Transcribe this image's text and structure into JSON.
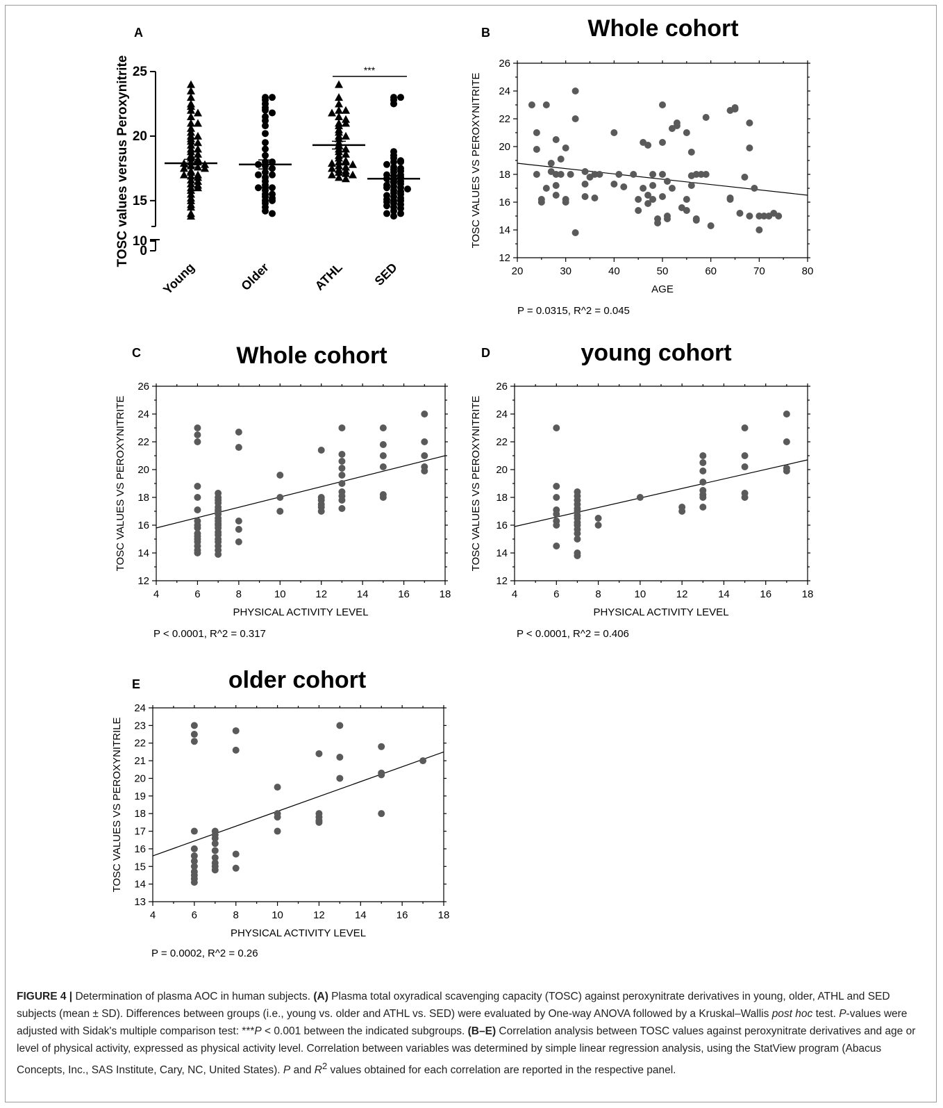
{
  "chart_data": [
    {
      "type": "scatter",
      "panel": "A",
      "title": "",
      "ylabel": "TOSC values versus Peroxynitrite",
      "xlabel": "",
      "categories": [
        "Young",
        "Older",
        "ATHL",
        "SED"
      ],
      "ylim": [
        0,
        25
      ],
      "y_axis_break": [
        10,
        13
      ],
      "yticks": [
        0,
        10,
        15,
        20,
        25
      ],
      "means": [
        17.9,
        17.8,
        19.3,
        16.7
      ],
      "sd": [
        0.3,
        0.35,
        0.3,
        0.25
      ],
      "significance": {
        "between": [
          "ATHL",
          "SED"
        ],
        "label": "***"
      },
      "series": [
        {
          "name": "Young",
          "marker": "triangle",
          "values": [
            24,
            23.5,
            23,
            22.5,
            22.3,
            22,
            21.8,
            21.5,
            21,
            21,
            20.6,
            20.3,
            20,
            20,
            19.8,
            19.6,
            19.5,
            19.3,
            19,
            19,
            18.8,
            18.6,
            18.5,
            18.3,
            18.2,
            18,
            18,
            17.9,
            17.8,
            17.7,
            17.6,
            17.5,
            17.5,
            17.3,
            17.2,
            17,
            17,
            16.9,
            16.8,
            16.6,
            16.5,
            16.3,
            16.2,
            16,
            16,
            15.8,
            15.5,
            15.2,
            15,
            14.7,
            14.5,
            14,
            13.8
          ]
        },
        {
          "name": "Older",
          "marker": "circle",
          "values": [
            23,
            23,
            22.8,
            22.5,
            22.2,
            22,
            21.8,
            21.5,
            21.2,
            20.8,
            20.2,
            19.5,
            19,
            18.5,
            18,
            18,
            17.8,
            17.7,
            17.5,
            17.2,
            17,
            17,
            16.8,
            16.5,
            16.2,
            16,
            16,
            16,
            15.8,
            15.5,
            15.5,
            15.3,
            15.2,
            15,
            15,
            14.8,
            14.5,
            14.2,
            14
          ]
        },
        {
          "name": "ATHL",
          "marker": "triangle",
          "values": [
            24,
            23,
            22.5,
            22,
            22,
            21.8,
            21.5,
            21.3,
            21,
            21,
            20.8,
            20.5,
            20.3,
            20,
            20,
            19.8,
            19.5,
            19.3,
            19,
            19,
            18.8,
            18.6,
            18.5,
            18.3,
            18.1,
            18,
            18,
            17.9,
            17.8,
            17.7,
            17.6,
            17.5,
            17.4,
            17.3,
            17.2,
            17.1,
            17,
            17,
            16.8,
            16.7
          ]
        },
        {
          "name": "SED",
          "marker": "circle",
          "values": [
            23,
            23,
            22.8,
            22.5,
            18.8,
            18.5,
            18.3,
            18.1,
            18,
            18,
            17.8,
            17.6,
            17.5,
            17.4,
            17.3,
            17.2,
            17,
            17,
            16.9,
            16.8,
            16.7,
            16.6,
            16.5,
            16.4,
            16.3,
            16.2,
            16.1,
            16,
            16,
            15.9,
            15.8,
            15.7,
            15.6,
            15.5,
            15.4,
            15.3,
            15.2,
            15.1,
            15,
            15,
            14.9,
            14.8,
            14.7,
            14.6,
            14.5,
            14.4,
            14.2,
            14,
            14,
            13.8
          ]
        }
      ]
    },
    {
      "type": "scatter",
      "panel": "B",
      "title": "Whole cohort",
      "xlabel": "AGE",
      "ylabel": "TOSC VALUES VS PEROXYNITRITE",
      "xlim": [
        20,
        80
      ],
      "ylim": [
        12,
        26
      ],
      "xticks": [
        20,
        30,
        40,
        50,
        60,
        70,
        80
      ],
      "yticks": [
        12,
        14,
        16,
        18,
        20,
        22,
        24,
        26
      ],
      "stats": "P = 0.0315, R^2 = 0.045",
      "fit": {
        "x": [
          20,
          80
        ],
        "y": [
          18.8,
          16.5
        ]
      },
      "x": [
        23,
        24,
        24,
        24,
        25,
        25,
        26,
        26,
        27,
        27,
        28,
        28,
        28,
        28,
        29,
        29,
        30,
        30,
        30,
        31,
        32,
        32,
        32,
        34,
        34,
        34,
        35,
        36,
        36,
        37,
        40,
        40,
        41,
        42,
        44,
        45,
        45,
        46,
        46,
        47,
        47,
        47,
        48,
        48,
        48,
        49,
        49,
        50,
        50,
        50,
        50,
        51,
        51,
        51,
        52,
        52,
        53,
        53,
        54,
        55,
        55,
        55,
        56,
        56,
        56,
        57,
        57,
        57,
        58,
        59,
        59,
        60,
        64,
        64,
        64,
        65,
        65,
        66,
        67,
        68,
        68,
        68,
        69,
        70,
        70,
        71,
        72,
        73,
        74
      ],
      "y": [
        23,
        21,
        19.8,
        18,
        16.2,
        16,
        23,
        17,
        18.8,
        18.2,
        18,
        20.5,
        16.5,
        17.2,
        19.1,
        18,
        19.9,
        16.2,
        16,
        18,
        24,
        22,
        13.8,
        18.2,
        17.3,
        16.4,
        17.8,
        18,
        16.3,
        18,
        21,
        17.3,
        18,
        17.1,
        18,
        15.4,
        16.2,
        20.3,
        17,
        20.1,
        16.5,
        15.9,
        18,
        17.2,
        16.2,
        14.8,
        14.5,
        23,
        20.3,
        18,
        16.4,
        17.5,
        15,
        14.8,
        21.3,
        17,
        21.7,
        21.5,
        15.6,
        21,
        16.2,
        15.4,
        19.6,
        17.9,
        17.2,
        18,
        14.8,
        14.7,
        18,
        22.1,
        18,
        14.3,
        22.6,
        16.2,
        16.3,
        22.8,
        22.7,
        15.2,
        17.8,
        21.7,
        19.9,
        15,
        17,
        15,
        14,
        15,
        15,
        15.2,
        15
      ]
    },
    {
      "type": "scatter",
      "panel": "C",
      "title": "Whole cohort",
      "xlabel": "PHYSICAL ACTIVITY LEVEL",
      "ylabel": "TOSC VALUES VS PEROXYNITRITE",
      "xlim": [
        4,
        18
      ],
      "ylim": [
        12,
        26
      ],
      "xticks": [
        4,
        6,
        8,
        10,
        12,
        14,
        16,
        18
      ],
      "yticks": [
        12,
        14,
        16,
        18,
        20,
        22,
        24,
        26
      ],
      "stats": "P < 0.0001, R^2 = 0.317",
      "fit": {
        "x": [
          4,
          18
        ],
        "y": [
          15.8,
          21
        ]
      },
      "x": [
        6,
        6,
        6,
        6,
        6,
        6,
        6,
        6,
        6,
        6,
        6,
        6,
        6,
        6,
        6,
        6,
        7,
        7,
        7,
        7,
        7,
        7,
        7,
        7,
        7,
        7,
        7,
        7,
        7,
        7,
        7,
        7,
        7,
        7,
        7,
        7,
        8,
        8,
        8,
        8,
        8,
        10,
        10,
        10,
        12,
        12,
        12,
        12,
        12,
        12,
        13,
        13,
        13,
        13,
        13,
        13,
        13,
        13,
        13,
        13,
        15,
        15,
        15,
        15,
        15,
        15,
        17,
        17,
        17,
        17,
        17
      ],
      "y": [
        23,
        22.5,
        22,
        18.8,
        18,
        17.1,
        16.3,
        16,
        15.8,
        15.4,
        15.2,
        15,
        14.8,
        14.5,
        14.2,
        14,
        18.3,
        18,
        17.8,
        17.6,
        17.3,
        17.1,
        17,
        16.8,
        16.5,
        16.3,
        16.1,
        16,
        15.8,
        15.5,
        15.3,
        15,
        14.8,
        14.5,
        14.2,
        13.9,
        22.7,
        21.6,
        16.3,
        15.7,
        14.8,
        19.6,
        18,
        17,
        21.4,
        18,
        17.8,
        17.5,
        17.3,
        17,
        23,
        21.1,
        20.6,
        20.1,
        19.6,
        19,
        18.4,
        18.1,
        17.8,
        17.2,
        23,
        21.8,
        21,
        20.2,
        18.2,
        18,
        24,
        22,
        21,
        20.2,
        19.9
      ]
    },
    {
      "type": "scatter",
      "panel": "D",
      "title": "young cohort",
      "xlabel": "PHYSICAL ACTIVITY LEVEL",
      "ylabel": "TOSC VALUES VS PEROXYNITRITE",
      "xlim": [
        4,
        18
      ],
      "ylim": [
        12,
        26
      ],
      "xticks": [
        4,
        6,
        8,
        10,
        12,
        14,
        16,
        18
      ],
      "yticks": [
        12,
        14,
        16,
        18,
        20,
        22,
        24,
        26
      ],
      "stats": "P < 0.0001, R^2 = 0.406",
      "fit": {
        "x": [
          4,
          18
        ],
        "y": [
          15.9,
          20.7
        ]
      },
      "x": [
        6,
        6,
        6,
        6,
        6,
        6,
        6,
        6,
        7,
        7,
        7,
        7,
        7,
        7,
        7,
        7,
        7,
        7,
        7,
        7,
        7,
        7,
        7,
        8,
        8,
        10,
        12,
        12,
        13,
        13,
        13,
        13,
        13,
        13,
        13,
        13,
        15,
        15,
        15,
        15,
        15,
        17,
        17,
        17,
        17
      ],
      "y": [
        23,
        18.8,
        18,
        17.1,
        16.8,
        16.3,
        16,
        14.5,
        18.4,
        18.1,
        17.8,
        17.5,
        17.2,
        17,
        16.7,
        16.5,
        16.2,
        16,
        15.7,
        15.4,
        15,
        14,
        13.8,
        16.5,
        16,
        18,
        17.3,
        17,
        21,
        20.5,
        19.9,
        19.1,
        18.5,
        18.2,
        18,
        17.3,
        23,
        21,
        20.2,
        18.3,
        18,
        24,
        22,
        20.1,
        19.9
      ]
    },
    {
      "type": "scatter",
      "panel": "E",
      "title": "older cohort",
      "xlabel": "PHYSICAL ACTIVITY LEVEL",
      "ylabel": "TOSC VALUES VS PEROXYNITRILE",
      "xlim": [
        4,
        18
      ],
      "ylim": [
        13,
        24
      ],
      "xticks": [
        4,
        6,
        8,
        10,
        12,
        14,
        16,
        18
      ],
      "yticks": [
        13,
        14,
        15,
        16,
        17,
        18,
        19,
        20,
        21,
        22,
        23,
        24
      ],
      "stats": "P = 0.0002, R^2 = 0.26",
      "fit": {
        "x": [
          4,
          18
        ],
        "y": [
          15.6,
          21.5
        ]
      },
      "x": [
        6,
        6,
        6,
        6,
        6,
        6,
        6,
        6,
        6,
        6,
        6,
        6,
        7,
        7,
        7,
        7,
        7,
        7,
        7,
        7,
        7,
        8,
        8,
        8,
        8,
        10,
        10,
        10,
        10,
        12,
        12,
        12,
        12,
        12,
        13,
        13,
        13,
        15,
        15,
        15,
        15,
        17
      ],
      "y": [
        23,
        22.5,
        22.1,
        17,
        16,
        15.6,
        15.3,
        15,
        14.7,
        14.5,
        14.3,
        14.1,
        17,
        16.8,
        16.6,
        16.3,
        15.9,
        15.5,
        15.2,
        15,
        14.8,
        22.7,
        21.6,
        15.7,
        14.9,
        19.5,
        18,
        17.8,
        17,
        21.4,
        18,
        17.8,
        17.6,
        17.5,
        23,
        21.2,
        20,
        21.8,
        20.3,
        20.2,
        18,
        21
      ]
    }
  ],
  "panel_labels": [
    "A",
    "B",
    "C",
    "D",
    "E"
  ],
  "caption": {
    "label": "FIGURE 4 |",
    "s1": " Determination of plasma AOC in human subjects. ",
    "s2": "(A)",
    "s3": " Plasma total oxyradical scavenging capacity (TOSC) against peroxynitrate derivatives in young, older, ATHL and SED subjects (mean ± SD). Differences between groups (i.e., young vs. older and ATHL vs. SED) were evaluated by One-way ANOVA followed by a Kruskal–Wallis ",
    "s4": "post hoc",
    "s5": " test. ",
    "s6": "P",
    "s7": "-values were adjusted with Sidak's multiple comparison test: ***",
    "s8": "P",
    "s9": " < 0.001 between the indicated subgroups. ",
    "s10": "(B–E)",
    "s11": " Correlation analysis between TOSC values against peroxynitrate derivatives and age or level of physical activity, expressed as physical activity level. Correlation between variables was determined by simple linear regression analysis, using the StatView program (Abacus Concepts, Inc., SAS Institute, Cary, NC, United States). ",
    "s12": "P",
    "s13": " and ",
    "s14": "R",
    "s15": "2",
    "s16": " values obtained for each correlation are reported in the respective panel."
  }
}
